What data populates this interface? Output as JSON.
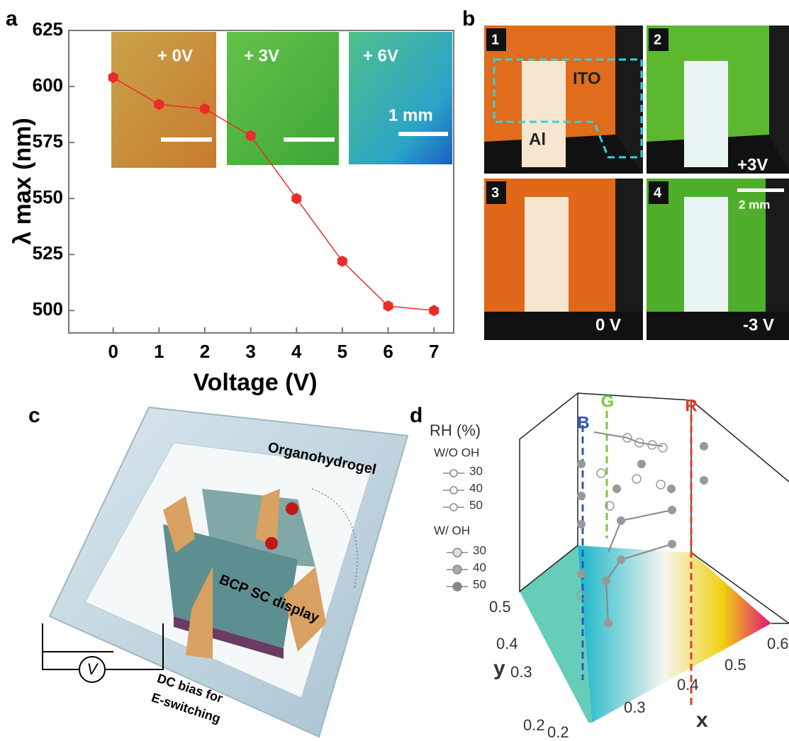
{
  "panel_labels": [
    "a",
    "b",
    "c",
    "d"
  ],
  "chart_data": {
    "type": "line",
    "xlabel": "Voltage (V)",
    "ylabel": "λ max (nm)",
    "x": [
      0,
      1,
      2,
      3,
      4,
      5,
      6,
      7
    ],
    "values": [
      604,
      592,
      590,
      578,
      550,
      522,
      502,
      500
    ],
    "color": "#ee2a2a",
    "xlim": [
      -0.97,
      7.43
    ],
    "ylim": [
      490,
      625
    ],
    "xticks": [
      0,
      1,
      2,
      3,
      4,
      5,
      6,
      7
    ],
    "yticks": [
      500,
      525,
      550,
      575,
      600,
      625
    ],
    "annotations": [
      "+ 0V",
      "+ 3V",
      "+ 6V",
      "1 mm"
    ]
  },
  "panel_b": {
    "frames": [
      "1",
      "2",
      "3",
      "4"
    ],
    "labels": [
      "ITO",
      "Al",
      "+3V",
      "2 mm",
      "0 V",
      "-3 V"
    ]
  },
  "panel_c": {
    "labels": [
      "Organohydrogel",
      "BCP SC display",
      "V",
      "DC bias for",
      "E-switching"
    ]
  },
  "panel_d": {
    "channels": [
      "B",
      "G",
      "R"
    ],
    "legend_title": "RH (%)",
    "without_oh": {
      "label": "W/O OH",
      "items": [
        "30",
        "40",
        "50"
      ]
    },
    "with_oh": {
      "label": "W/  OH",
      "items": [
        "30",
        "40",
        "50"
      ]
    },
    "y_label": "y",
    "x_label": "x",
    "y_ticks": [
      "0.5",
      "0.4",
      "0.3",
      "0.2"
    ],
    "x_ticks": [
      "0.2",
      "0.3",
      "0.4",
      "0.5",
      "0.6"
    ]
  }
}
